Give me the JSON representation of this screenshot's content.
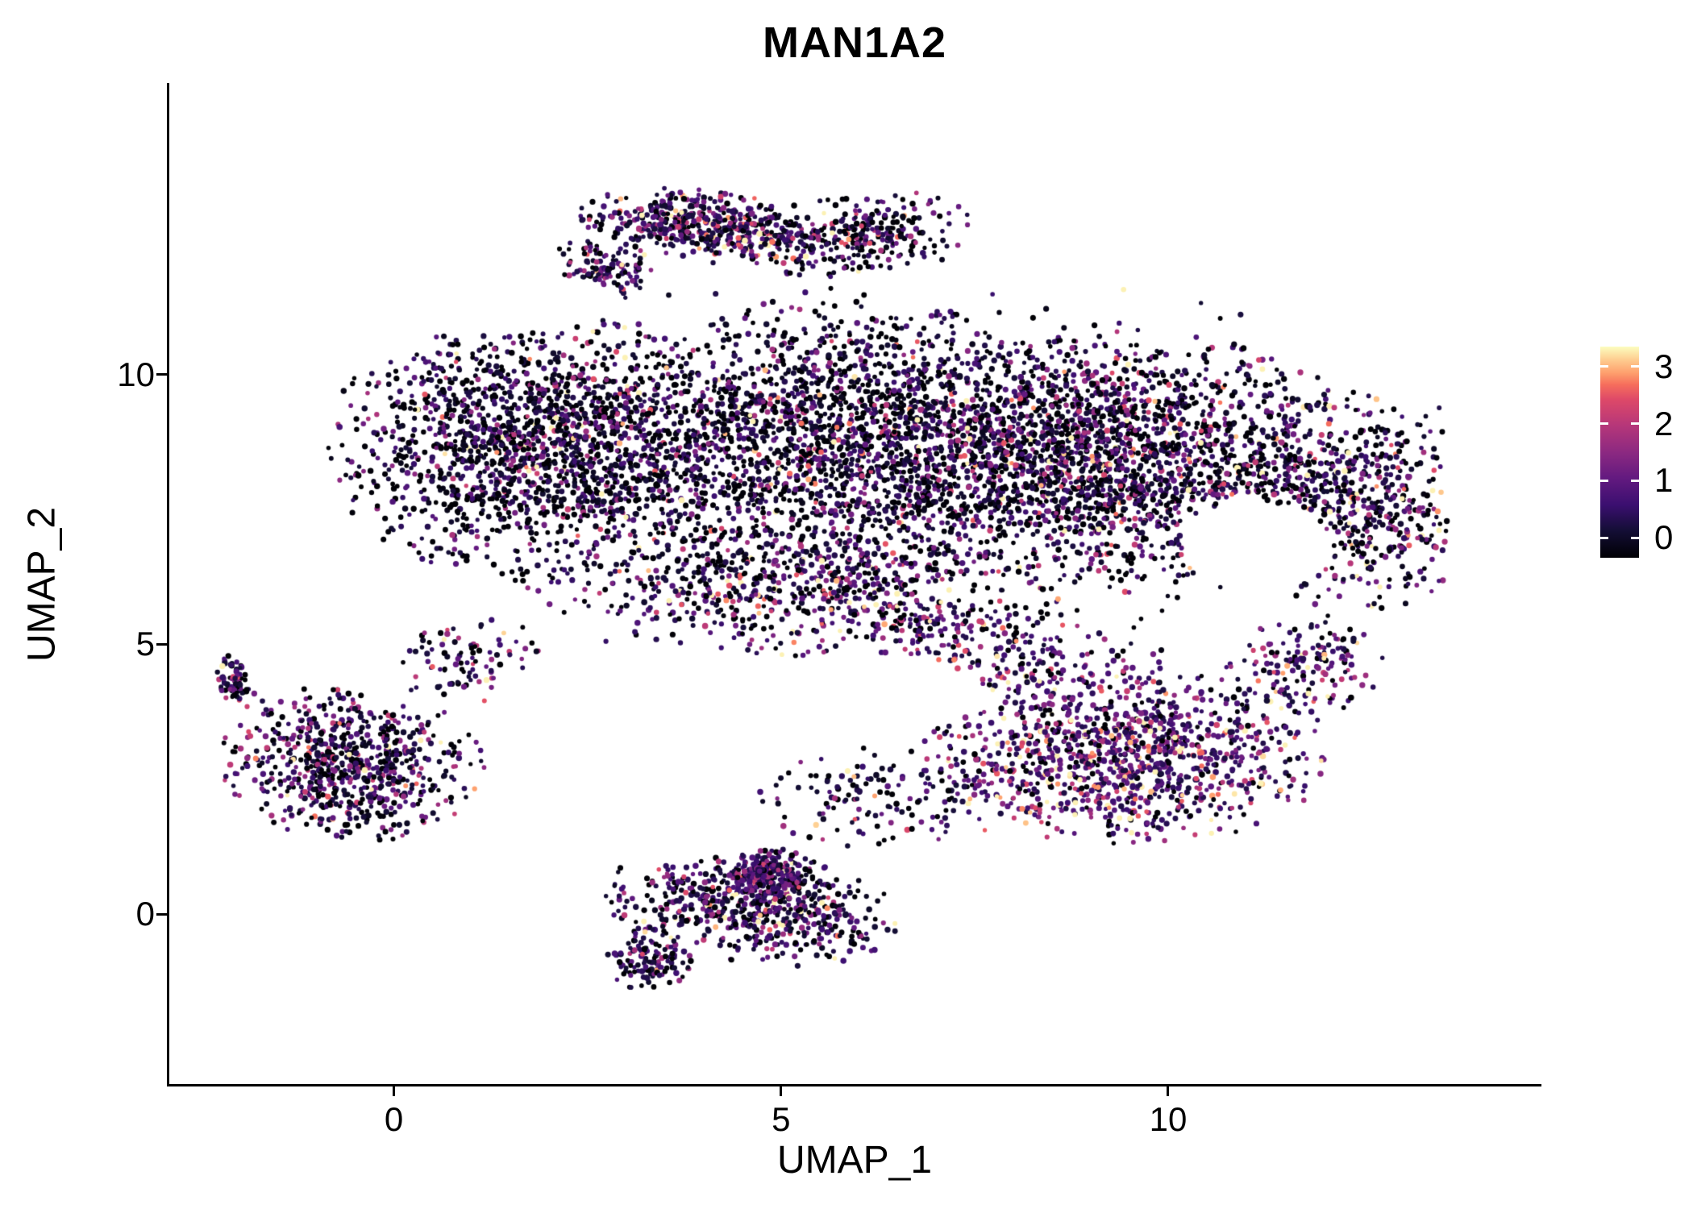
{
  "figure": {
    "background": "#ffffff"
  },
  "chart_data": {
    "type": "scatter",
    "title": "MAN1A2",
    "xlabel": "UMAP_1",
    "ylabel": "UMAP_2",
    "xlim": [
      -2.9,
      14.8
    ],
    "ylim": [
      -3.15,
      15.37
    ],
    "x_ticks": [
      0,
      5,
      10
    ],
    "y_ticks": [
      0,
      5,
      10
    ],
    "grid": false,
    "legend": {
      "type": "colorbar",
      "position": "right",
      "ticks": [
        3,
        2,
        1,
        0
      ],
      "vmin": 0,
      "vmax": 3.35,
      "colormap": "magma",
      "colormap_stops": [
        {
          "t": 0,
          "color": "#000004"
        },
        {
          "t": 0.13,
          "color": "#140e36"
        },
        {
          "t": 0.25,
          "color": "#3b0f70"
        },
        {
          "t": 0.38,
          "color": "#641a80"
        },
        {
          "t": 0.5,
          "color": "#8c2981"
        },
        {
          "t": 0.63,
          "color": "#b73779"
        },
        {
          "t": 0.75,
          "color": "#de4968"
        },
        {
          "t": 0.82,
          "color": "#f66e5c"
        },
        {
          "t": 0.875,
          "color": "#fe9f6d"
        },
        {
          "t": 0.94,
          "color": "#fece91"
        },
        {
          "t": 1,
          "color": "#fcfdbf"
        }
      ]
    },
    "point_style": {
      "radius": 3.0,
      "seed": 42
    },
    "clusters": [
      {
        "name": "top-arc-dense",
        "cx": 4.0,
        "cy": 12.75,
        "rx": 1.45,
        "ry": 0.6,
        "rot": -10,
        "n": 480,
        "expr": {
          "p0": 0.18,
          "base": 0.25,
          "scale": 0.85
        }
      },
      {
        "name": "top-arc-east",
        "cx": 6.0,
        "cy": 12.55,
        "rx": 1.35,
        "ry": 0.75,
        "rot": 12,
        "n": 300,
        "expr": {
          "p0": 0.3,
          "base": 0.15,
          "scale": 0.8
        }
      },
      {
        "name": "top-arc-west-tail",
        "cx": 2.7,
        "cy": 12.0,
        "rx": 0.6,
        "ry": 0.5,
        "rot": -30,
        "n": 120,
        "expr": {
          "p0": 0.25,
          "base": 0.2,
          "scale": 0.8
        }
      },
      {
        "name": "main-west",
        "cx": 1.9,
        "cy": 8.7,
        "rx": 2.5,
        "ry": 2.3,
        "rot": 0,
        "n": 1700,
        "expr": {
          "p0": 0.32,
          "base": 0.12,
          "scale": 0.75
        }
      },
      {
        "name": "main-center",
        "cx": 5.8,
        "cy": 8.7,
        "rx": 2.9,
        "ry": 2.5,
        "rot": 0,
        "n": 1850,
        "expr": {
          "p0": 0.35,
          "base": 0.12,
          "scale": 0.75
        }
      },
      {
        "name": "main-east",
        "cx": 9.3,
        "cy": 8.5,
        "rx": 2.7,
        "ry": 2.2,
        "rot": 0,
        "n": 1900,
        "expr": {
          "p0": 0.3,
          "base": 0.18,
          "scale": 0.8
        }
      },
      {
        "name": "east-lobe",
        "cx": 12.4,
        "cy": 7.7,
        "rx": 1.5,
        "ry": 2.0,
        "rot": 0,
        "n": 640,
        "expr": {
          "p0": 0.28,
          "base": 0.22,
          "scale": 0.85
        }
      },
      {
        "name": "mid-band",
        "cx": 5.2,
        "cy": 6.0,
        "rx": 3.2,
        "ry": 1.1,
        "rot": -5,
        "n": 620,
        "expr": {
          "p0": 0.25,
          "base": 0.28,
          "scale": 0.9
        }
      },
      {
        "name": "bridge-southeast",
        "cx": 8.0,
        "cy": 4.8,
        "rx": 2.0,
        "ry": 0.8,
        "rot": -15,
        "n": 220,
        "expr": {
          "p0": 0.2,
          "base": 0.35,
          "scale": 0.9
        }
      },
      {
        "name": "south-east-blob",
        "cx": 9.4,
        "cy": 2.9,
        "rx": 2.4,
        "ry": 1.5,
        "rot": 0,
        "n": 1150,
        "expr": {
          "p0": 0.15,
          "base": 0.45,
          "scale": 0.95
        }
      },
      {
        "name": "south-east-tail",
        "cx": 11.7,
        "cy": 4.5,
        "rx": 1.0,
        "ry": 0.9,
        "rot": 30,
        "n": 170,
        "expr": {
          "p0": 0.2,
          "base": 0.4,
          "scale": 0.9
        }
      },
      {
        "name": "west-cluster",
        "cx": -0.55,
        "cy": 2.8,
        "rx": 1.55,
        "ry": 1.3,
        "rot": -10,
        "n": 720,
        "expr": {
          "p0": 0.27,
          "base": 0.22,
          "scale": 0.9
        }
      },
      {
        "name": "west-tip",
        "cx": -2.05,
        "cy": 4.3,
        "rx": 0.22,
        "ry": 0.5,
        "rot": 10,
        "n": 70,
        "expr": {
          "p0": 0.25,
          "base": 0.3,
          "scale": 0.8
        }
      },
      {
        "name": "west-bridge",
        "cx": 0.95,
        "cy": 4.7,
        "rx": 0.9,
        "ry": 0.7,
        "rot": 20,
        "n": 90,
        "expr": {
          "p0": 0.3,
          "base": 0.25,
          "scale": 0.8
        }
      },
      {
        "name": "south-cluster",
        "cx": 4.6,
        "cy": 0.15,
        "rx": 1.8,
        "ry": 0.95,
        "rot": -12,
        "n": 620,
        "expr": {
          "p0": 0.25,
          "base": 0.22,
          "scale": 0.85
        }
      },
      {
        "name": "south-dense-spot",
        "cx": 4.8,
        "cy": 0.75,
        "rx": 0.55,
        "ry": 0.45,
        "rot": 0,
        "n": 200,
        "expr": {
          "p0": 0.15,
          "base": 0.45,
          "scale": 0.6
        }
      },
      {
        "name": "south-tail",
        "cx": 3.3,
        "cy": -0.85,
        "rx": 0.5,
        "ry": 0.55,
        "rot": 20,
        "n": 130,
        "expr": {
          "p0": 0.25,
          "base": 0.3,
          "scale": 0.7
        }
      },
      {
        "name": "south-mid-sparse",
        "cx": 6.3,
        "cy": 2.1,
        "rx": 1.5,
        "ry": 0.9,
        "rot": 0,
        "n": 140,
        "expr": {
          "p0": 0.3,
          "base": 0.25,
          "scale": 0.8
        }
      },
      {
        "name": "halo-sparse",
        "cx": 6.5,
        "cy": 8.2,
        "rx": 6.3,
        "ry": 3.4,
        "rot": 0,
        "n": 650,
        "expr": {
          "p0": 0.4,
          "base": 0.1,
          "scale": 0.75
        }
      }
    ],
    "holes": [
      {
        "cx": 11.15,
        "cy": 6.8,
        "rx": 0.95,
        "ry": 0.85
      },
      {
        "cx": 6.0,
        "cy": 4.1,
        "rx": 1.6,
        "ry": 0.75
      },
      {
        "cx": 3.3,
        "cy": 1.5,
        "rx": 1.15,
        "ry": 0.6
      },
      {
        "cx": 1.2,
        "cy": 11.35,
        "rx": 1.7,
        "ry": 0.6
      }
    ]
  }
}
